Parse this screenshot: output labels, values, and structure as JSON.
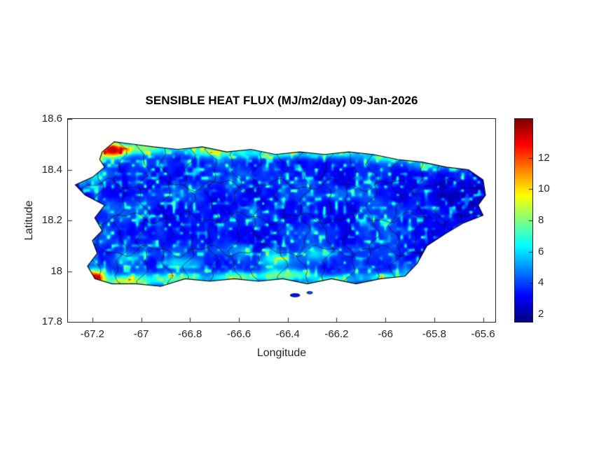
{
  "figure": {
    "title": "SENSIBLE HEAT FLUX (MJ/m2/day) 09-Jan-2026",
    "background": "#ffffff"
  },
  "axes": {
    "xlabel": "Longitude",
    "ylabel": "Latitude",
    "xlim": [
      -67.3,
      -65.55
    ],
    "ylim": [
      17.8,
      18.6
    ],
    "x_tick_values": [
      -67.2,
      -67,
      -66.8,
      -66.6,
      -66.4,
      -66.2,
      -66,
      -65.8,
      -65.6
    ],
    "x_tick_labels": [
      "-67.2",
      "-67",
      "-66.8",
      "-66.6",
      "-66.4",
      "-66.2",
      "-66",
      "-65.8",
      "-65.6"
    ],
    "y_tick_values": [
      17.8,
      18,
      18.2,
      18.4,
      18.6
    ],
    "y_tick_labels": [
      "17.8",
      "18",
      "18.2",
      "18.4",
      "18.6"
    ],
    "tick_color": "#262626",
    "axis_color": "#262626"
  },
  "colorbar": {
    "colormap": "jet",
    "range": [
      1.5,
      14.5
    ],
    "tick_values": [
      2,
      4,
      6,
      8,
      10,
      12
    ],
    "tick_labels": [
      "2",
      "4",
      "6",
      "8",
      "10",
      "12"
    ]
  },
  "chart_data": {
    "type": "heatmap",
    "title": "SENSIBLE HEAT FLUX (MJ/m2/day) 09-Jan-2026",
    "xlabel": "Longitude",
    "ylabel": "Latitude",
    "units": "MJ/m2/day",
    "date": "09-Jan-2026",
    "region": "Puerto Rico island with municipal boundaries",
    "colormap": "jet",
    "color_limits": [
      1.5,
      14.5
    ],
    "value_range": [
      2,
      13
    ],
    "colorbar_ticks": [
      2,
      4,
      6,
      8,
      10,
      12
    ],
    "xlim": [
      -67.3,
      -65.55
    ],
    "ylim": [
      17.8,
      18.6
    ],
    "background_value": 3.5,
    "noise": {
      "base": 2.0,
      "fbm_amp": 2.9,
      "fbm_scale": 13,
      "speckle_amp": 5.0,
      "speckle_scale": 60
    },
    "coastline": [
      [
        -67.16,
        18.47
      ],
      [
        -67.11,
        18.51
      ],
      [
        -67.03,
        18.5
      ],
      [
        -66.95,
        18.49
      ],
      [
        -66.85,
        18.48
      ],
      [
        -66.75,
        18.49
      ],
      [
        -66.65,
        18.47
      ],
      [
        -66.55,
        18.48
      ],
      [
        -66.45,
        18.46
      ],
      [
        -66.35,
        18.47
      ],
      [
        -66.25,
        18.46
      ],
      [
        -66.15,
        18.47
      ],
      [
        -66.05,
        18.46
      ],
      [
        -65.95,
        18.44
      ],
      [
        -65.85,
        18.43
      ],
      [
        -65.75,
        18.41
      ],
      [
        -65.66,
        18.4
      ],
      [
        -65.6,
        18.36
      ],
      [
        -65.59,
        18.3
      ],
      [
        -65.62,
        18.26
      ],
      [
        -65.6,
        18.22
      ],
      [
        -65.68,
        18.19
      ],
      [
        -65.75,
        18.15
      ],
      [
        -65.83,
        18.1
      ],
      [
        -65.87,
        18.03
      ],
      [
        -65.92,
        17.98
      ],
      [
        -66.02,
        17.97
      ],
      [
        -66.12,
        17.95
      ],
      [
        -66.22,
        17.97
      ],
      [
        -66.32,
        17.95
      ],
      [
        -66.42,
        17.97
      ],
      [
        -66.52,
        17.96
      ],
      [
        -66.62,
        17.97
      ],
      [
        -66.72,
        17.96
      ],
      [
        -66.82,
        17.97
      ],
      [
        -66.92,
        17.94
      ],
      [
        -67.02,
        17.95
      ],
      [
        -67.12,
        17.95
      ],
      [
        -67.19,
        17.97
      ],
      [
        -67.22,
        18.02
      ],
      [
        -67.18,
        18.07
      ],
      [
        -67.2,
        18.12
      ],
      [
        -67.16,
        18.16
      ],
      [
        -67.19,
        18.21
      ],
      [
        -67.15,
        18.26
      ],
      [
        -67.23,
        18.3
      ],
      [
        -67.27,
        18.34
      ],
      [
        -67.2,
        18.37
      ],
      [
        -67.15,
        18.41
      ],
      [
        -67.17,
        18.44
      ]
    ],
    "islets": [
      {
        "lon": -66.37,
        "lat": 17.905,
        "rx": 0.02,
        "ry": 0.007
      },
      {
        "lon": -66.31,
        "lat": 17.915,
        "rx": 0.012,
        "ry": 0.005
      }
    ],
    "hotspots": [
      {
        "lon": -67.12,
        "lat": 18.475,
        "sx": 0.055,
        "sy": 0.03,
        "amp": 10
      },
      {
        "lon": -67.0,
        "lat": 18.485,
        "sx": 0.1,
        "sy": 0.025,
        "amp": 4.5
      },
      {
        "lon": -66.72,
        "lat": 18.475,
        "sx": 0.13,
        "sy": 0.022,
        "amp": 4
      },
      {
        "lon": -66.45,
        "lat": 18.465,
        "sx": 0.12,
        "sy": 0.02,
        "amp": 3.5
      },
      {
        "lon": -66.2,
        "lat": 18.465,
        "sx": 0.1,
        "sy": 0.02,
        "amp": 3.5
      },
      {
        "lon": -66.0,
        "lat": 18.445,
        "sx": 0.09,
        "sy": 0.02,
        "amp": 3
      },
      {
        "lon": -65.8,
        "lat": 18.42,
        "sx": 0.08,
        "sy": 0.02,
        "amp": 2.5
      },
      {
        "lon": -67.19,
        "lat": 17.975,
        "sx": 0.04,
        "sy": 0.028,
        "amp": 10
      },
      {
        "lon": -67.05,
        "lat": 17.96,
        "sx": 0.09,
        "sy": 0.025,
        "amp": 5
      },
      {
        "lon": -66.85,
        "lat": 17.97,
        "sx": 0.11,
        "sy": 0.025,
        "amp": 4.5
      },
      {
        "lon": -66.6,
        "lat": 17.975,
        "sx": 0.1,
        "sy": 0.022,
        "amp": 4.5
      },
      {
        "lon": -66.4,
        "lat": 17.985,
        "sx": 0.1,
        "sy": 0.022,
        "amp": 4
      },
      {
        "lon": -66.2,
        "lat": 17.965,
        "sx": 0.09,
        "sy": 0.02,
        "amp": 3.5
      },
      {
        "lon": -66.0,
        "lat": 17.975,
        "sx": 0.08,
        "sy": 0.02,
        "amp": 3
      },
      {
        "lon": -66.45,
        "lat": 18.05,
        "sx": 0.07,
        "sy": 0.03,
        "amp": 2.8
      },
      {
        "lon": -66.28,
        "lat": 18.07,
        "sx": 0.06,
        "sy": 0.025,
        "amp": 2.2
      },
      {
        "lon": -66.85,
        "lat": 18.03,
        "sx": 0.07,
        "sy": 0.025,
        "amp": 2.4
      },
      {
        "lon": -67.05,
        "lat": 18.05,
        "sx": 0.06,
        "sy": 0.025,
        "amp": 2.2
      },
      {
        "lon": -66.6,
        "lat": 18.08,
        "sx": 0.05,
        "sy": 0.03,
        "amp": 2
      },
      {
        "lon": -67.2,
        "lat": 18.37,
        "sx": 0.05,
        "sy": 0.03,
        "amp": 3
      },
      {
        "lon": -65.75,
        "lat": 18.28,
        "sx": 0.14,
        "sy": 0.09,
        "amp": -1.2
      }
    ],
    "boundaries": {
      "vertical_count": 17,
      "vertical_start": -67.18,
      "vertical_step": 0.094,
      "horizontal_lats": [
        18.08,
        18.21,
        18.34
      ]
    }
  }
}
